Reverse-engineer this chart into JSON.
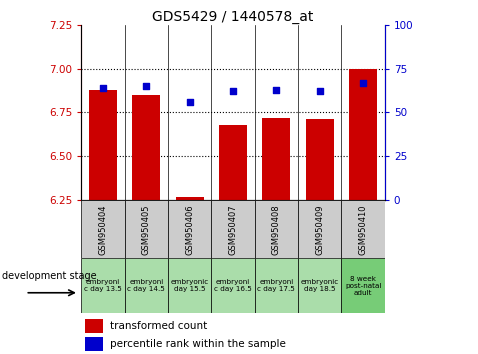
{
  "title": "GDS5429 / 1440578_at",
  "samples": [
    "GSM950404",
    "GSM950405",
    "GSM950406",
    "GSM950407",
    "GSM950408",
    "GSM950409",
    "GSM950410"
  ],
  "dev_stages": [
    "embryoni\nc day 13.5",
    "embryoni\nc day 14.5",
    "embryonic\nday 15.5",
    "embryoni\nc day 16.5",
    "embryoni\nc day 17.5",
    "embryonic\nday 18.5",
    "8 week\npost-natal\nadult"
  ],
  "dev_stage_colors": [
    "#aaddaa",
    "#aaddaa",
    "#aaddaa",
    "#aaddaa",
    "#aaddaa",
    "#aaddaa",
    "#77cc77"
  ],
  "transformed_count": [
    6.88,
    6.85,
    6.27,
    6.68,
    6.72,
    6.71,
    7.0
  ],
  "percentile_rank": [
    64,
    65,
    56,
    62,
    63,
    62,
    67
  ],
  "ylim_left": [
    6.25,
    7.25
  ],
  "ylim_right": [
    0,
    100
  ],
  "yticks_left": [
    6.25,
    6.5,
    6.75,
    7.0,
    7.25
  ],
  "yticks_right": [
    0,
    25,
    50,
    75,
    100
  ],
  "bar_color": "#cc0000",
  "dot_color": "#0000cc",
  "grid_yticks": [
    6.5,
    6.75,
    7.0
  ],
  "background_plot": "#ffffff",
  "cell_bg_gray": "#cccccc",
  "title_fontsize": 10
}
